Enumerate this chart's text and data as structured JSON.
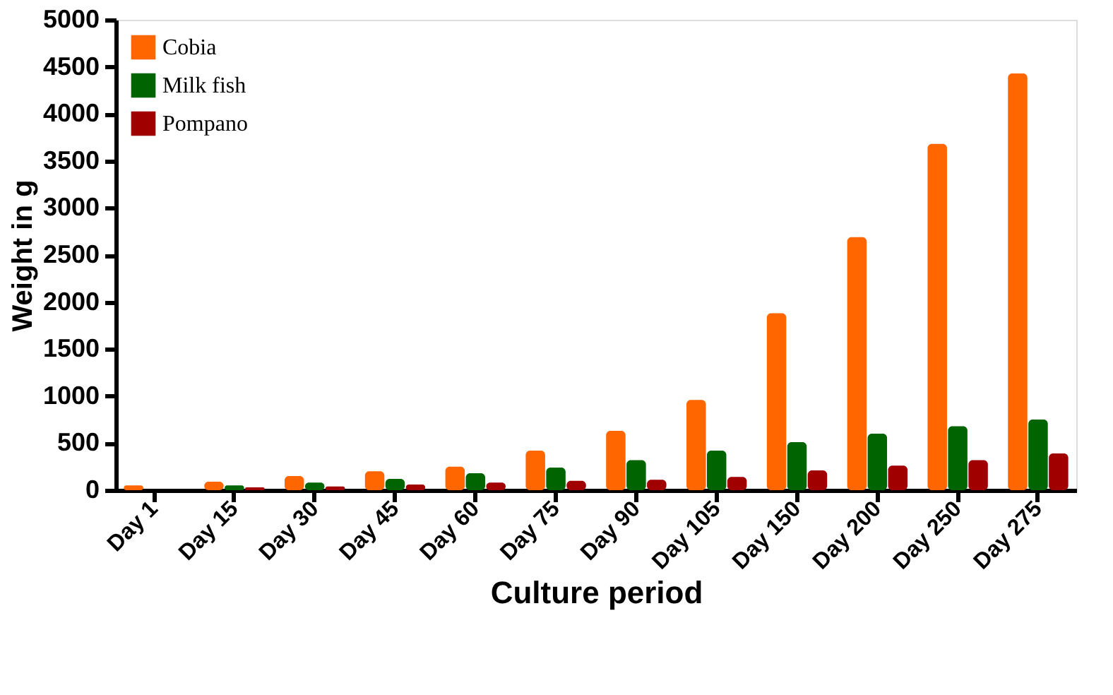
{
  "chart_data": {
    "type": "bar",
    "xlabel": "Culture period",
    "ylabel": "Weight in g",
    "categories": [
      "Day 1",
      "Day 15",
      "Day 30",
      "Day 45",
      "Day 60",
      "Day 75",
      "Day 90",
      "Day 105",
      "Day 150",
      "Day 200",
      "Day 250",
      "Day 275"
    ],
    "series": [
      {
        "name": "Cobia",
        "color": "#ff6600",
        "values": [
          50,
          90,
          150,
          200,
          250,
          420,
          630,
          960,
          1880,
          2690,
          3680,
          4430
        ]
      },
      {
        "name": "Milk fish",
        "color": "#006400",
        "values": [
          0,
          50,
          80,
          120,
          180,
          240,
          320,
          420,
          510,
          600,
          680,
          750
        ]
      },
      {
        "name": "Pompano",
        "color": "#a00000",
        "values": [
          0,
          30,
          40,
          60,
          80,
          100,
          110,
          140,
          210,
          260,
          320,
          390
        ]
      }
    ],
    "ylim": [
      0,
      5000
    ],
    "yticks": [
      0,
      500,
      1000,
      1500,
      2000,
      2500,
      3000,
      3500,
      4000,
      4500,
      5000
    ],
    "grid": false,
    "legend": "top left"
  }
}
